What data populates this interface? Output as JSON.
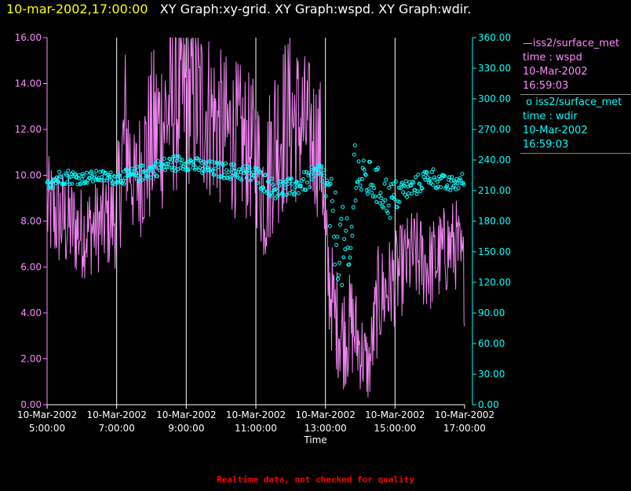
{
  "header": {
    "time": "10-mar-2002,17:00:00",
    "graphs": "XY Graph:xy-grid.  XY Graph:wspd.  XY Graph:wdir."
  },
  "legend": [
    {
      "symbol": "—",
      "name": "iss2/surface_met",
      "field": "time : wspd",
      "date": "10-Mar-2002",
      "time": "16:59:03",
      "color": "#ff88ff"
    },
    {
      "symbol": "o",
      "name": "iss2/surface_met",
      "field": "time : wdir",
      "date": "10-Mar-2002",
      "time": "16:59:03",
      "color": "#00ffff"
    }
  ],
  "footer": "Realtime data, not checked for quality",
  "chart_data": {
    "type": "line",
    "xlabel": "Time",
    "x_ticks": [
      {
        "date": "10-Mar-2002",
        "time": "5:00:00"
      },
      {
        "date": "10-Mar-2002",
        "time": "7:00:00"
      },
      {
        "date": "10-Mar-2002",
        "time": "9:00:00"
      },
      {
        "date": "10-Mar-2002",
        "time": "11:00:00"
      },
      {
        "date": "10-Mar-2002",
        "time": "13:00:00"
      },
      {
        "date": "10-Mar-2002",
        "time": "15:00:00"
      },
      {
        "date": "10-Mar-2002",
        "time": "17:00:00"
      }
    ],
    "xlim": [
      "10-Mar-2002 05:00",
      "10-Mar-2002 17:00"
    ],
    "grid": "vertical",
    "y_left": {
      "ticks": [
        "0.00",
        "2.00",
        "4.00",
        "6.00",
        "8.00",
        "10.00",
        "12.00",
        "14.00",
        "16.00"
      ],
      "ylim": [
        0,
        16
      ],
      "color": "#ff88ff"
    },
    "y_right": {
      "ticks": [
        "0.00",
        "30.00",
        "60.00",
        "90.00",
        "120.00",
        "150.00",
        "180.00",
        "210.00",
        "240.00",
        "270.00",
        "300.00",
        "330.00",
        "360.00"
      ],
      "ylim": [
        0,
        360
      ],
      "color": "#00ffff"
    },
    "series": [
      {
        "name": "iss2/surface_met time : wspd",
        "axis": "left",
        "style": "line",
        "color": "#ee82ee",
        "x_hours": [
          5.0,
          5.5,
          6.0,
          6.5,
          7.0,
          7.25,
          7.5,
          7.75,
          8.0,
          8.5,
          9.0,
          9.5,
          10.0,
          10.5,
          11.0,
          11.25,
          11.5,
          12.0,
          12.5,
          12.9,
          13.0,
          13.25,
          13.5,
          13.75,
          14.0,
          14.25,
          14.5,
          15.0,
          15.5,
          16.0,
          16.5,
          16.75,
          17.0
        ],
        "values": [
          8.5,
          8.0,
          7.5,
          7.8,
          8.3,
          12.0,
          9.5,
          10.5,
          11.5,
          12.8,
          13.5,
          13.0,
          12.0,
          11.5,
          11.0,
          9.0,
          11.5,
          12.5,
          12.0,
          11.0,
          6.5,
          4.0,
          3.0,
          3.5,
          2.5,
          1.5,
          4.5,
          5.5,
          6.5,
          6.0,
          6.8,
          7.0,
          5.5
        ],
        "band": [
          1.5,
          1.5,
          1.3,
          1.3,
          1.5,
          2.5,
          1.5,
          2.0,
          2.5,
          2.5,
          2.5,
          2.5,
          2.2,
          2.2,
          2.0,
          2.0,
          2.5,
          2.5,
          2.0,
          2.0,
          1.8,
          1.5,
          1.5,
          1.5,
          1.2,
          1.0,
          1.5,
          1.3,
          1.3,
          1.3,
          1.3,
          1.3,
          1.3
        ]
      },
      {
        "name": "iss2/surface_met time : wdir",
        "axis": "right",
        "style": "scatter",
        "color": "#00ffff",
        "x_hours": [
          5.0,
          5.5,
          6.0,
          6.5,
          7.0,
          7.5,
          8.0,
          8.5,
          9.0,
          9.5,
          10.0,
          10.5,
          11.0,
          11.5,
          12.0,
          12.5,
          12.9,
          13.2,
          13.5,
          13.7,
          13.85,
          14.0,
          14.3,
          14.6,
          14.9,
          15.2,
          15.5,
          16.0,
          16.5,
          17.0
        ],
        "values": [
          218,
          224,
          222,
          224,
          222,
          225,
          230,
          236,
          238,
          232,
          230,
          228,
          225,
          212,
          212,
          220,
          230,
          180,
          150,
          130,
          240,
          220,
          220,
          210,
          200,
          210,
          212,
          225,
          215,
          220
        ],
        "spread": [
          8,
          8,
          6,
          6,
          6,
          8,
          8,
          8,
          8,
          8,
          8,
          8,
          10,
          10,
          10,
          10,
          10,
          40,
          45,
          45,
          40,
          20,
          20,
          20,
          20,
          12,
          10,
          10,
          8,
          8
        ]
      }
    ]
  }
}
